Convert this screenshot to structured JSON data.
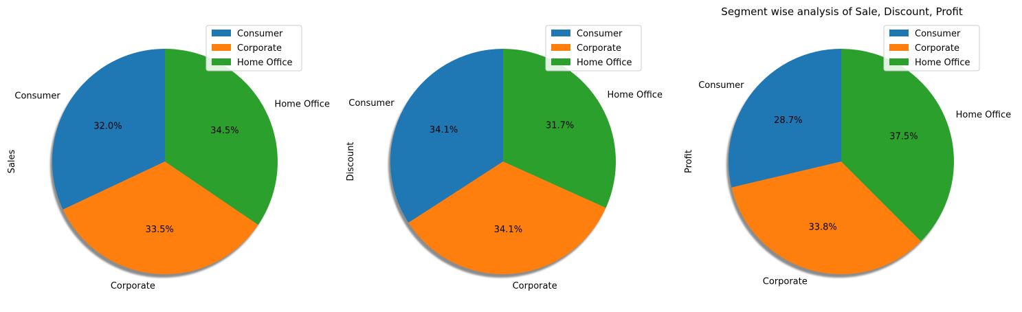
{
  "title": "Segment wise analysis of Sale, Discount, Profit",
  "colors": {
    "Consumer": "#1f77b4",
    "Corporate": "#ff7f0e",
    "Home Office": "#2ca02c"
  },
  "chart_data": [
    {
      "type": "pie",
      "ylabel": "Sales",
      "categories": [
        "Consumer",
        "Corporate",
        "Home Office"
      ],
      "values": [
        32.0,
        33.5,
        34.5
      ],
      "labels": [
        "32.0%",
        "33.5%",
        "34.5%"
      ],
      "start_angle": 90,
      "shadow": true,
      "legend": [
        "Consumer",
        "Corporate",
        "Home Office"
      ],
      "legend_loc": "upper-right"
    },
    {
      "type": "pie",
      "ylabel": "Discount",
      "categories": [
        "Consumer",
        "Corporate",
        "Home Office"
      ],
      "values": [
        34.1,
        34.1,
        31.7
      ],
      "labels": [
        "34.1%",
        "34.1%",
        "31.7%"
      ],
      "start_angle": 90,
      "shadow": true,
      "legend": [
        "Consumer",
        "Corporate",
        "Home Office"
      ],
      "legend_loc": "upper-right"
    },
    {
      "type": "pie",
      "ylabel": "Profit",
      "title": "Segment wise analysis of Sale, Discount, Profit",
      "categories": [
        "Consumer",
        "Corporate",
        "Home Office"
      ],
      "values": [
        28.7,
        33.8,
        37.5
      ],
      "labels": [
        "28.7%",
        "33.8%",
        "37.5%"
      ],
      "start_angle": 90,
      "shadow": true,
      "legend": [
        "Consumer",
        "Corporate",
        "Home Office"
      ],
      "legend_loc": "upper-right"
    }
  ]
}
